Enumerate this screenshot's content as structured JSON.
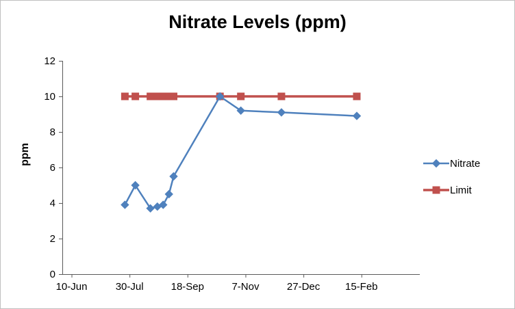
{
  "chart_data": {
    "type": "line",
    "title": "Nitrate Levels (ppm)",
    "xlabel": "",
    "ylabel": "ppm",
    "x_axis": {
      "tick_labels": [
        "10-Jun",
        "30-Jul",
        "18-Sep",
        "7-Nov",
        "27-Dec",
        "15-Feb"
      ],
      "tick_days": [
        0,
        50,
        100,
        150,
        200,
        250
      ],
      "note": "date axis, major unit 50 days, days measured from 10-Jun"
    },
    "y_axis": {
      "ticks": [
        0,
        2,
        4,
        6,
        8,
        10,
        12
      ],
      "ylim": [
        0,
        12
      ]
    },
    "grid": "off",
    "legend_position": "right",
    "series": [
      {
        "name": "Nitrate",
        "color": "#4F81BD",
        "marker": "diamond",
        "x_days": [
          46,
          55,
          68,
          74,
          79,
          84,
          88,
          128,
          146,
          181,
          246
        ],
        "values": [
          3.9,
          5.0,
          3.7,
          3.8,
          3.9,
          4.5,
          5.5,
          10.0,
          9.2,
          9.1,
          8.9
        ]
      },
      {
        "name": "Limit",
        "color": "#C0504D",
        "marker": "square",
        "x_days": [
          46,
          55,
          68,
          74,
          79,
          84,
          88,
          128,
          146,
          181,
          246
        ],
        "values": [
          10,
          10,
          10,
          10,
          10,
          10,
          10,
          10,
          10,
          10,
          10
        ]
      }
    ],
    "axis_color": "#595959",
    "tick_label_color": "#000000"
  }
}
